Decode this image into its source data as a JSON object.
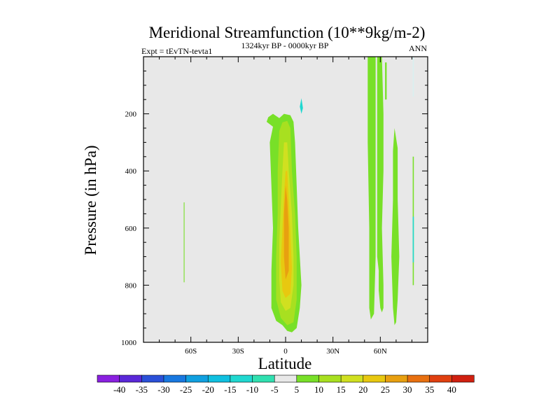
{
  "chart_data": {
    "type": "contour",
    "title": "Meridional Streamfunction (10**9kg/m-2)",
    "left_label": "Expt = tEvTN-tevta1",
    "center_label": "1324kyr BP - 0000kyr BP",
    "right_label": "ANN",
    "xlabel": "Latitude",
    "ylabel": "Pressure (in hPa)",
    "xlim": [
      -90,
      90
    ],
    "ylim": [
      1000,
      0
    ],
    "x_ticks": [
      {
        "value": -60,
        "label": "60S"
      },
      {
        "value": -30,
        "label": "30S"
      },
      {
        "value": 0,
        "label": "0"
      },
      {
        "value": 30,
        "label": "30N"
      },
      {
        "value": 60,
        "label": "60N"
      }
    ],
    "y_ticks": [
      {
        "value": 200,
        "label": "200"
      },
      {
        "value": 400,
        "label": "400"
      },
      {
        "value": 600,
        "label": "600"
      },
      {
        "value": 800,
        "label": "800"
      },
      {
        "value": 1000,
        "label": "1000"
      }
    ],
    "background_color": "#e8e8e8",
    "colorbar": {
      "levels": [
        "-40",
        "-35",
        "-30",
        "-25",
        "-20",
        "-15",
        "-10",
        "-5",
        "5",
        "10",
        "15",
        "20",
        "25",
        "30",
        "35",
        "40"
      ],
      "colors": [
        "#8a20e0",
        "#5a28d8",
        "#2a50d8",
        "#1878e0",
        "#10a0e0",
        "#10c0e0",
        "#20d8d0",
        "#30e0b0",
        "#e8e8e8",
        "#78e028",
        "#a8e020",
        "#d0e020",
        "#e8c810",
        "#e8a010",
        "#e87010",
        "#e04010",
        "#d02010"
      ]
    },
    "regions": [
      {
        "name": "cell-tropical-10",
        "color": "#78e028",
        "points": [
          [
            -11,
            212
          ],
          [
            -8,
            200
          ],
          [
            -4,
            215
          ],
          [
            -1,
            200
          ],
          [
            3,
            205
          ],
          [
            5,
            228
          ],
          [
            6,
            300
          ],
          [
            7,
            450
          ],
          [
            8,
            600
          ],
          [
            9,
            700
          ],
          [
            10,
            800
          ],
          [
            9,
            880
          ],
          [
            7,
            950
          ],
          [
            4,
            965
          ],
          [
            1,
            960
          ],
          [
            -2,
            940
          ],
          [
            -6,
            925
          ],
          [
            -9,
            880
          ],
          [
            -9,
            750
          ],
          [
            -8,
            600
          ],
          [
            -9,
            450
          ],
          [
            -10,
            300
          ],
          [
            -8,
            245
          ],
          [
            -12,
            228
          ]
        ]
      },
      {
        "name": "cell-tropical-15",
        "color": "#a8e020",
        "points": [
          [
            -2,
            230
          ],
          [
            1,
            225
          ],
          [
            3,
            250
          ],
          [
            4,
            400
          ],
          [
            6,
            550
          ],
          [
            7,
            700
          ],
          [
            7,
            850
          ],
          [
            5,
            930
          ],
          [
            1,
            940
          ],
          [
            -3,
            915
          ],
          [
            -6,
            850
          ],
          [
            -6,
            700
          ],
          [
            -5,
            550
          ],
          [
            -5,
            400
          ],
          [
            -4,
            260
          ]
        ]
      },
      {
        "name": "cell-tropical-20",
        "color": "#d0e020",
        "points": [
          [
            -1,
            300
          ],
          [
            1,
            300
          ],
          [
            2,
            400
          ],
          [
            4,
            550
          ],
          [
            5,
            700
          ],
          [
            5,
            800
          ],
          [
            3,
            880
          ],
          [
            0,
            890
          ],
          [
            -3,
            860
          ],
          [
            -4,
            780
          ],
          [
            -4,
            650
          ],
          [
            -3,
            520
          ],
          [
            -2,
            400
          ]
        ]
      },
      {
        "name": "cell-tropical-25",
        "color": "#e8c810",
        "points": [
          [
            0,
            400
          ],
          [
            1,
            400
          ],
          [
            2,
            500
          ],
          [
            3,
            620
          ],
          [
            4,
            740
          ],
          [
            3,
            830
          ],
          [
            0,
            845
          ],
          [
            -2,
            820
          ],
          [
            -3,
            720
          ],
          [
            -2,
            600
          ],
          [
            -1,
            480
          ]
        ]
      },
      {
        "name": "cell-tropical-30",
        "color": "#e8a010",
        "points": [
          [
            0,
            450
          ],
          [
            1,
            500
          ],
          [
            2,
            600
          ],
          [
            2,
            750
          ],
          [
            0,
            780
          ],
          [
            -1,
            700
          ],
          [
            -1,
            550
          ]
        ]
      },
      {
        "name": "cell-north-left-10",
        "color": "#78e028",
        "points": [
          [
            52,
            0
          ],
          [
            57,
            0
          ],
          [
            57,
            400
          ],
          [
            57,
            700
          ],
          [
            56,
            900
          ],
          [
            54,
            920
          ],
          [
            53,
            880
          ],
          [
            53,
            600
          ],
          [
            52,
            300
          ]
        ]
      },
      {
        "name": "cell-north-main-10",
        "color": "#78e028",
        "points": [
          [
            58,
            0
          ],
          [
            61,
            0
          ],
          [
            62,
            200
          ],
          [
            62,
            400
          ],
          [
            61,
            600
          ],
          [
            62,
            800
          ],
          [
            62,
            880
          ],
          [
            61,
            895
          ],
          [
            60,
            880
          ],
          [
            59,
            820
          ],
          [
            59,
            750
          ],
          [
            58,
            700
          ],
          [
            58,
            400
          ]
        ]
      },
      {
        "name": "cell-north-mid-10",
        "color": "#78e028",
        "points": [
          [
            59,
            750
          ],
          [
            60,
            790
          ],
          [
            61,
            810
          ],
          [
            60,
            830
          ],
          [
            59,
            820
          ]
        ]
      },
      {
        "name": "cell-north-right-10",
        "color": "#78e028",
        "points": [
          [
            69,
            250
          ],
          [
            71,
            320
          ],
          [
            71,
            500
          ],
          [
            72,
            700
          ],
          [
            71,
            850
          ],
          [
            70,
            930
          ],
          [
            69,
            940
          ],
          [
            68,
            880
          ],
          [
            67,
            700
          ],
          [
            68,
            500
          ],
          [
            68,
            330
          ]
        ]
      },
      {
        "name": "cell-north-thin-10",
        "color": "#78e028",
        "points": [
          [
            63,
            20
          ],
          [
            64,
            20
          ],
          [
            64,
            150
          ],
          [
            63,
            150
          ]
        ]
      },
      {
        "name": "cell-south-60-5",
        "color": "#78e028",
        "points": [
          [
            -64.5,
            510
          ],
          [
            -64,
            510
          ],
          [
            -64,
            790
          ],
          [
            -64.5,
            790
          ]
        ]
      },
      {
        "name": "cell-arctic-thin-5",
        "color": "#78e028",
        "points": [
          [
            80.5,
            350
          ],
          [
            81.2,
            350
          ],
          [
            81.2,
            800
          ],
          [
            80.5,
            800
          ]
        ]
      },
      {
        "name": "cell-arctic-neg",
        "color": "#20d8d0",
        "points": [
          [
            80.5,
            560
          ],
          [
            81.2,
            560
          ],
          [
            81.2,
            720
          ],
          [
            80.5,
            720
          ]
        ]
      },
      {
        "name": "cell-tropical-neg",
        "color": "#20d8d0",
        "points": [
          [
            9,
            175
          ],
          [
            10,
            145
          ],
          [
            11,
            180
          ],
          [
            10,
            200
          ]
        ]
      },
      {
        "name": "cell-polar-neg-faint",
        "color": "#d8f0f0",
        "points": [
          [
            80.5,
            0
          ],
          [
            81.2,
            0
          ],
          [
            81.2,
            140
          ],
          [
            80.5,
            140
          ]
        ]
      }
    ]
  }
}
